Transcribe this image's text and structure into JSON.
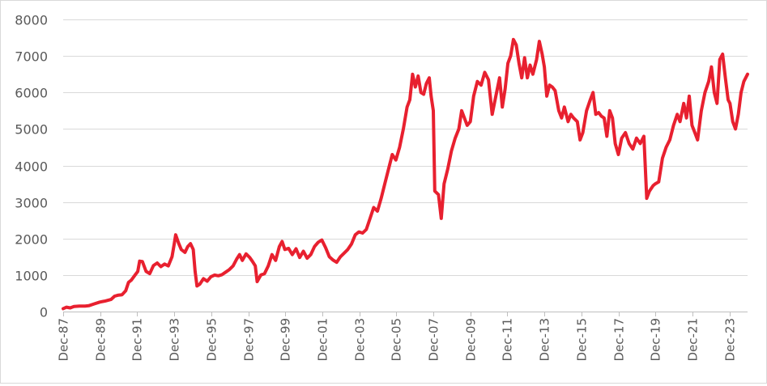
{
  "chart_data": {
    "type": "line",
    "title": "",
    "xlabel": "",
    "ylabel": "",
    "ylim": [
      0,
      8000
    ],
    "yticks": [
      0,
      1000,
      2000,
      3000,
      4000,
      5000,
      6000,
      7000,
      8000
    ],
    "xlim": [
      1987.92,
      2024.9
    ],
    "xticks": [
      {
        "x": 1987.92,
        "label": "Dec-87"
      },
      {
        "x": 1989.92,
        "label": "Dec-89"
      },
      {
        "x": 1991.92,
        "label": "Dec-91"
      },
      {
        "x": 1993.92,
        "label": "Dec-93"
      },
      {
        "x": 1995.92,
        "label": "Dec-95"
      },
      {
        "x": 1997.92,
        "label": "Dec-97"
      },
      {
        "x": 1999.92,
        "label": "Dec-99"
      },
      {
        "x": 2001.92,
        "label": "Dec-01"
      },
      {
        "x": 2003.92,
        "label": "Dec-03"
      },
      {
        "x": 2005.92,
        "label": "Dec-05"
      },
      {
        "x": 2007.92,
        "label": "Dec-07"
      },
      {
        "x": 2009.92,
        "label": "Dec-09"
      },
      {
        "x": 2011.92,
        "label": "Dec-11"
      },
      {
        "x": 2013.92,
        "label": "Dec-13"
      },
      {
        "x": 2015.92,
        "label": "Dec-15"
      },
      {
        "x": 2017.92,
        "label": "Dec-17"
      },
      {
        "x": 2019.92,
        "label": "Dec-19"
      },
      {
        "x": 2021.92,
        "label": "Dec-21"
      },
      {
        "x": 2023.92,
        "label": "Dec-23"
      }
    ],
    "grid": true,
    "legend": "none",
    "series": [
      {
        "color": "#e8202f",
        "points": [
          [
            1987.92,
            80
          ],
          [
            1988.1,
            120
          ],
          [
            1988.3,
            100
          ],
          [
            1988.5,
            140
          ],
          [
            1988.8,
            150
          ],
          [
            1989.1,
            150
          ],
          [
            1989.3,
            160
          ],
          [
            1989.6,
            210
          ],
          [
            1989.9,
            260
          ],
          [
            1990.2,
            290
          ],
          [
            1990.5,
            330
          ],
          [
            1990.7,
            420
          ],
          [
            1990.9,
            450
          ],
          [
            1991.1,
            460
          ],
          [
            1991.3,
            570
          ],
          [
            1991.45,
            800
          ],
          [
            1991.6,
            860
          ],
          [
            1991.8,
            1000
          ],
          [
            1991.95,
            1100
          ],
          [
            1992.05,
            1380
          ],
          [
            1992.2,
            1370
          ],
          [
            1992.4,
            1100
          ],
          [
            1992.6,
            1040
          ],
          [
            1992.8,
            1260
          ],
          [
            1993.0,
            1330
          ],
          [
            1993.2,
            1230
          ],
          [
            1993.4,
            1300
          ],
          [
            1993.6,
            1250
          ],
          [
            1993.8,
            1500
          ],
          [
            1993.92,
            1850
          ],
          [
            1994.0,
            2100
          ],
          [
            1994.15,
            1880
          ],
          [
            1994.3,
            1700
          ],
          [
            1994.5,
            1620
          ],
          [
            1994.65,
            1780
          ],
          [
            1994.8,
            1860
          ],
          [
            1994.95,
            1700
          ],
          [
            1995.05,
            1100
          ],
          [
            1995.15,
            700
          ],
          [
            1995.3,
            750
          ],
          [
            1995.5,
            900
          ],
          [
            1995.7,
            830
          ],
          [
            1995.9,
            950
          ],
          [
            1996.1,
            1000
          ],
          [
            1996.3,
            980
          ],
          [
            1996.5,
            1010
          ],
          [
            1996.7,
            1080
          ],
          [
            1996.9,
            1150
          ],
          [
            1997.1,
            1250
          ],
          [
            1997.3,
            1440
          ],
          [
            1997.45,
            1560
          ],
          [
            1997.6,
            1400
          ],
          [
            1997.8,
            1580
          ],
          [
            1998.0,
            1480
          ],
          [
            1998.15,
            1370
          ],
          [
            1998.3,
            1250
          ],
          [
            1998.4,
            820
          ],
          [
            1998.6,
            1000
          ],
          [
            1998.8,
            1040
          ],
          [
            1999.0,
            1250
          ],
          [
            1999.2,
            1560
          ],
          [
            1999.4,
            1400
          ],
          [
            1999.6,
            1780
          ],
          [
            1999.75,
            1920
          ],
          [
            1999.9,
            1700
          ],
          [
            2000.1,
            1730
          ],
          [
            2000.3,
            1560
          ],
          [
            2000.5,
            1720
          ],
          [
            2000.7,
            1480
          ],
          [
            2000.9,
            1650
          ],
          [
            2001.1,
            1460
          ],
          [
            2001.3,
            1560
          ],
          [
            2001.5,
            1780
          ],
          [
            2001.7,
            1900
          ],
          [
            2001.9,
            1960
          ],
          [
            2002.1,
            1750
          ],
          [
            2002.3,
            1500
          ],
          [
            2002.5,
            1410
          ],
          [
            2002.7,
            1350
          ],
          [
            2002.9,
            1500
          ],
          [
            2003.1,
            1600
          ],
          [
            2003.3,
            1700
          ],
          [
            2003.5,
            1850
          ],
          [
            2003.7,
            2100
          ],
          [
            2003.9,
            2180
          ],
          [
            2004.1,
            2150
          ],
          [
            2004.3,
            2250
          ],
          [
            2004.5,
            2550
          ],
          [
            2004.7,
            2850
          ],
          [
            2004.9,
            2750
          ],
          [
            2005.1,
            3100
          ],
          [
            2005.3,
            3500
          ],
          [
            2005.5,
            3900
          ],
          [
            2005.7,
            4300
          ],
          [
            2005.9,
            4150
          ],
          [
            2006.1,
            4500
          ],
          [
            2006.3,
            5000
          ],
          [
            2006.5,
            5600
          ],
          [
            2006.65,
            5800
          ],
          [
            2006.8,
            6500
          ],
          [
            2006.95,
            6150
          ],
          [
            2007.1,
            6450
          ],
          [
            2007.25,
            6000
          ],
          [
            2007.4,
            5950
          ],
          [
            2007.55,
            6250
          ],
          [
            2007.7,
            6400
          ],
          [
            2007.8,
            5900
          ],
          [
            2007.92,
            5500
          ],
          [
            2008.0,
            3300
          ],
          [
            2008.2,
            3200
          ],
          [
            2008.35,
            2550
          ],
          [
            2008.5,
            3500
          ],
          [
            2008.7,
            3900
          ],
          [
            2008.9,
            4400
          ],
          [
            2009.1,
            4750
          ],
          [
            2009.3,
            5000
          ],
          [
            2009.45,
            5500
          ],
          [
            2009.6,
            5300
          ],
          [
            2009.75,
            5100
          ],
          [
            2009.92,
            5200
          ],
          [
            2010.1,
            5900
          ],
          [
            2010.3,
            6300
          ],
          [
            2010.5,
            6200
          ],
          [
            2010.7,
            6550
          ],
          [
            2010.9,
            6350
          ],
          [
            2011.1,
            5400
          ],
          [
            2011.3,
            5900
          ],
          [
            2011.5,
            6400
          ],
          [
            2011.65,
            5600
          ],
          [
            2011.8,
            6100
          ],
          [
            2011.95,
            6800
          ],
          [
            2012.1,
            7000
          ],
          [
            2012.25,
            7450
          ],
          [
            2012.4,
            7300
          ],
          [
            2012.55,
            6800
          ],
          [
            2012.7,
            6400
          ],
          [
            2012.85,
            6950
          ],
          [
            2013.0,
            6400
          ],
          [
            2013.15,
            6750
          ],
          [
            2013.3,
            6500
          ],
          [
            2013.5,
            6900
          ],
          [
            2013.65,
            7400
          ],
          [
            2013.8,
            7050
          ],
          [
            2013.92,
            6700
          ],
          [
            2014.05,
            5900
          ],
          [
            2014.2,
            6200
          ],
          [
            2014.35,
            6150
          ],
          [
            2014.5,
            6050
          ],
          [
            2014.7,
            5500
          ],
          [
            2014.85,
            5300
          ],
          [
            2015.0,
            5600
          ],
          [
            2015.2,
            5200
          ],
          [
            2015.35,
            5400
          ],
          [
            2015.5,
            5300
          ],
          [
            2015.7,
            5200
          ],
          [
            2015.85,
            4700
          ],
          [
            2016.0,
            4900
          ],
          [
            2016.2,
            5500
          ],
          [
            2016.4,
            5800
          ],
          [
            2016.55,
            6000
          ],
          [
            2016.7,
            5400
          ],
          [
            2016.85,
            5450
          ],
          [
            2017.0,
            5350
          ],
          [
            2017.15,
            5300
          ],
          [
            2017.3,
            4800
          ],
          [
            2017.45,
            5500
          ],
          [
            2017.6,
            5300
          ],
          [
            2017.75,
            4600
          ],
          [
            2017.92,
            4300
          ],
          [
            2018.1,
            4750
          ],
          [
            2018.3,
            4900
          ],
          [
            2018.5,
            4600
          ],
          [
            2018.7,
            4450
          ],
          [
            2018.9,
            4750
          ],
          [
            2019.1,
            4600
          ],
          [
            2019.3,
            4800
          ],
          [
            2019.45,
            3100
          ],
          [
            2019.6,
            3300
          ],
          [
            2019.8,
            3450
          ],
          [
            2019.92,
            3500
          ],
          [
            2020.1,
            3550
          ],
          [
            2020.3,
            4200
          ],
          [
            2020.5,
            4500
          ],
          [
            2020.7,
            4700
          ],
          [
            2020.9,
            5100
          ],
          [
            2021.1,
            5400
          ],
          [
            2021.25,
            5200
          ],
          [
            2021.45,
            5700
          ],
          [
            2021.6,
            5300
          ],
          [
            2021.75,
            5900
          ],
          [
            2021.9,
            5100
          ],
          [
            2022.05,
            4900
          ],
          [
            2022.2,
            4700
          ],
          [
            2022.4,
            5500
          ],
          [
            2022.6,
            6000
          ],
          [
            2022.8,
            6300
          ],
          [
            2022.95,
            6700
          ],
          [
            2023.1,
            6000
          ],
          [
            2023.25,
            5700
          ],
          [
            2023.4,
            6900
          ],
          [
            2023.55,
            7050
          ],
          [
            2023.7,
            6400
          ],
          [
            2023.85,
            5800
          ],
          [
            2023.95,
            5700
          ],
          [
            2024.1,
            5200
          ],
          [
            2024.25,
            5000
          ],
          [
            2024.4,
            5400
          ],
          [
            2024.55,
            6000
          ],
          [
            2024.7,
            6300
          ],
          [
            2024.9,
            6500
          ]
        ]
      }
    ]
  }
}
